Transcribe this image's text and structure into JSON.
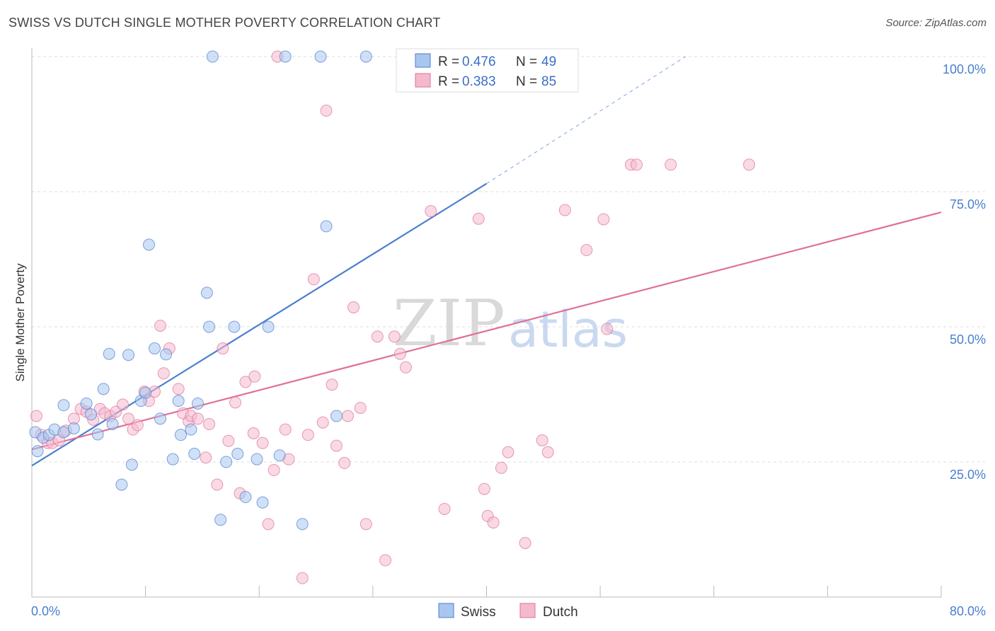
{
  "title": "SWISS VS DUTCH SINGLE MOTHER POVERTY CORRELATION CHART",
  "source": "Source: ZipAtlas.com",
  "colors": {
    "swiss": "#4a7fd0",
    "swiss_fill": "#a9c6ee",
    "dutch": "#e07097",
    "dutch_fill": "#f4b9cd",
    "grid": "#dddddd",
    "tick_text": "#4a7fd0"
  },
  "watermark": {
    "zip": "ZIP",
    "atlas": "atlas"
  },
  "legend": {
    "rows": [
      {
        "r_label": "R = ",
        "r_value": "0.476",
        "n_label": "N = ",
        "n_value": "49"
      },
      {
        "r_label": "R = ",
        "r_value": "0.383",
        "n_label": "N = ",
        "n_value": "85"
      }
    ]
  },
  "chart_data": {
    "type": "scatter",
    "ylabel": "Single Mother Poverty",
    "xlim": [
      0,
      80
    ],
    "ylim": [
      0,
      100
    ],
    "x_tick_labels": [
      "0.0%",
      "80.0%"
    ],
    "y_ticks": [
      {
        "value": 25,
        "label": "25.0%"
      },
      {
        "value": 50,
        "label": "50.0%"
      },
      {
        "value": 75,
        "label": "75.0%"
      },
      {
        "value": 100,
        "label": "100.0%"
      }
    ],
    "series": [
      {
        "name": "Swiss",
        "trend": {
          "x0": 0,
          "y0": 24.3,
          "x1": 40,
          "y1": 76.5,
          "dash_to_x": 57.5,
          "dash_to_y": 100
        },
        "points": [
          [
            0.3,
            30.5
          ],
          [
            0.5,
            27
          ],
          [
            1.0,
            29.5
          ],
          [
            1.5,
            30
          ],
          [
            2.0,
            31
          ],
          [
            2.8,
            30.5
          ],
          [
            3.7,
            31.2
          ],
          [
            2.8,
            35.5
          ],
          [
            4.8,
            35.8
          ],
          [
            5.2,
            33.8
          ],
          [
            5.8,
            30.1
          ],
          [
            6.3,
            38.5
          ],
          [
            6.8,
            45
          ],
          [
            7.1,
            32
          ],
          [
            7.9,
            20.8
          ],
          [
            8.5,
            44.8
          ],
          [
            8.8,
            24.5
          ],
          [
            9.6,
            36.3
          ],
          [
            10.0,
            37.8
          ],
          [
            10.3,
            65.2
          ],
          [
            10.8,
            46
          ],
          [
            11.3,
            33
          ],
          [
            11.8,
            44.9
          ],
          [
            12.4,
            25.5
          ],
          [
            12.9,
            36.3
          ],
          [
            13.1,
            30
          ],
          [
            14.0,
            31
          ],
          [
            14.3,
            26.5
          ],
          [
            14.6,
            35.8
          ],
          [
            15.4,
            56.3
          ],
          [
            15.6,
            50
          ],
          [
            15.9,
            100
          ],
          [
            16.6,
            14.3
          ],
          [
            17.1,
            25
          ],
          [
            17.8,
            50
          ],
          [
            18.1,
            26.5
          ],
          [
            18.8,
            18.5
          ],
          [
            19.8,
            25.5
          ],
          [
            20.3,
            17.5
          ],
          [
            20.8,
            50
          ],
          [
            21.8,
            26.2
          ],
          [
            22.3,
            100
          ],
          [
            23.8,
            13.5
          ],
          [
            25.4,
            100
          ],
          [
            25.9,
            68.6
          ],
          [
            26.8,
            33.5
          ],
          [
            29.4,
            100
          ]
        ]
      },
      {
        "name": "Dutch",
        "trend": {
          "x0": 0,
          "y0": 27.3,
          "x1": 80,
          "y1": 71.2
        },
        "points": [
          [
            0.4,
            33.5
          ],
          [
            0.8,
            30
          ],
          [
            1.4,
            28.5
          ],
          [
            1.8,
            28.5
          ],
          [
            2.4,
            29
          ],
          [
            3.0,
            30.8
          ],
          [
            3.7,
            33
          ],
          [
            4.3,
            34.8
          ],
          [
            4.8,
            34.3
          ],
          [
            5.4,
            32.8
          ],
          [
            6.0,
            34.8
          ],
          [
            6.4,
            34
          ],
          [
            6.9,
            33.5
          ],
          [
            7.4,
            34.3
          ],
          [
            8.0,
            35.6
          ],
          [
            8.5,
            33
          ],
          [
            8.9,
            31
          ],
          [
            9.3,
            31.8
          ],
          [
            9.9,
            38
          ],
          [
            10.3,
            36.3
          ],
          [
            10.8,
            38
          ],
          [
            11.3,
            50.2
          ],
          [
            11.6,
            41.4
          ],
          [
            12.1,
            46
          ],
          [
            12.9,
            38.5
          ],
          [
            13.3,
            34
          ],
          [
            13.8,
            32.5
          ],
          [
            14.0,
            33.5
          ],
          [
            14.6,
            33
          ],
          [
            15.3,
            25.8
          ],
          [
            15.6,
            32
          ],
          [
            16.3,
            20.8
          ],
          [
            16.8,
            46
          ],
          [
            17.3,
            28.9
          ],
          [
            17.9,
            36
          ],
          [
            18.3,
            19.2
          ],
          [
            18.8,
            39.8
          ],
          [
            19.5,
            30.3
          ],
          [
            19.6,
            40.8
          ],
          [
            20.3,
            28.5
          ],
          [
            20.8,
            13.5
          ],
          [
            21.3,
            23.5
          ],
          [
            21.6,
            100
          ],
          [
            22.3,
            31
          ],
          [
            22.6,
            25.5
          ],
          [
            23.8,
            3.5
          ],
          [
            24.3,
            30
          ],
          [
            24.8,
            58.8
          ],
          [
            25.6,
            32.3
          ],
          [
            25.9,
            90
          ],
          [
            26.4,
            39.3
          ],
          [
            26.8,
            28
          ],
          [
            27.5,
            24.8
          ],
          [
            27.8,
            33.5
          ],
          [
            28.3,
            53.6
          ],
          [
            28.9,
            35
          ],
          [
            29.4,
            13.5
          ],
          [
            30.4,
            48.2
          ],
          [
            31.1,
            6.8
          ],
          [
            31.9,
            48.2
          ],
          [
            32.4,
            45
          ],
          [
            32.9,
            42.5
          ],
          [
            35.1,
            71.4
          ],
          [
            36.3,
            16.3
          ],
          [
            38.9,
            100
          ],
          [
            39.3,
            70
          ],
          [
            39.8,
            20
          ],
          [
            40.1,
            15
          ],
          [
            40.6,
            13.8
          ],
          [
            41.3,
            23.9
          ],
          [
            41.9,
            26.8
          ],
          [
            43.4,
            10
          ],
          [
            44.9,
            29
          ],
          [
            45.4,
            26.8
          ],
          [
            46.9,
            71.6
          ],
          [
            48.8,
            64.2
          ],
          [
            50.3,
            69.9
          ],
          [
            50.6,
            49.6
          ],
          [
            52.7,
            80
          ],
          [
            53.2,
            80
          ],
          [
            56.2,
            80
          ],
          [
            63.1,
            80
          ]
        ]
      }
    ]
  }
}
